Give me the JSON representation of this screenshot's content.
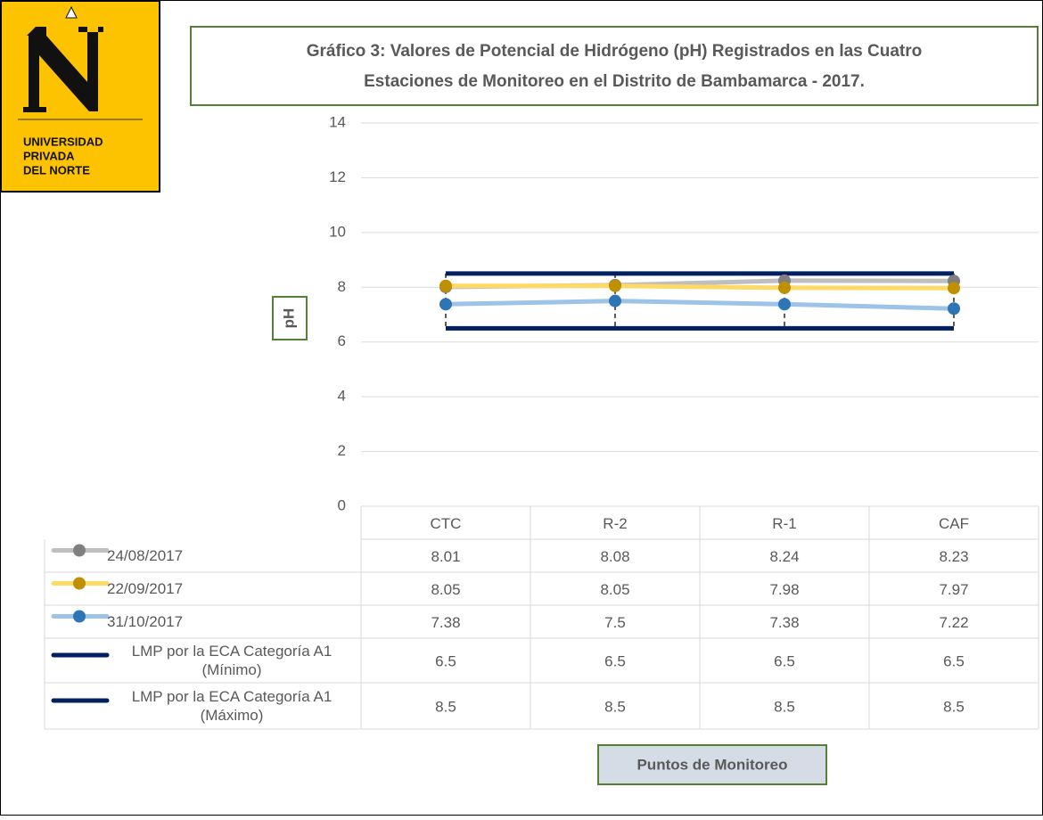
{
  "logo": {
    "lines": [
      "UNIVERSIDAD",
      "PRIVADA",
      "DEL NORTE"
    ]
  },
  "chart_data": {
    "type": "line",
    "title": [
      "Gráfico 3: Valores de Potencial de Hidrógeno (pH) Registrados en las Cuatro",
      "Estaciones de Monitoreo en el Distrito de Bambamarca - 2017."
    ],
    "x_label": "Puntos de Monitoreo",
    "y_label": "pH",
    "categories": [
      "CTC",
      "R-2",
      "R-1",
      "CAF"
    ],
    "series": [
      {
        "name": "24/08/2017",
        "color": "#bfbfbf",
        "marker_color": "#7f7f7f",
        "values": [
          8.01,
          8.08,
          8.24,
          8.23
        ]
      },
      {
        "name": "22/09/2017",
        "color": "#ffd966",
        "marker_color": "#bf9000",
        "values": [
          8.05,
          8.05,
          7.98,
          7.97
        ]
      },
      {
        "name": "31/10/2017",
        "color": "#9dc3e6",
        "marker_color": "#2e75b6",
        "values": [
          7.38,
          7.5,
          7.38,
          7.22
        ]
      },
      {
        "name": "LMP por la ECA Categoría A1 (Mínimo)",
        "color": "#002060",
        "values": [
          6.5,
          6.5,
          6.5,
          6.5
        ]
      },
      {
        "name": "LMP por la ECA Categoría A1 (Máximo)",
        "color": "#002060",
        "values": [
          8.5,
          8.5,
          8.5,
          8.5
        ]
      }
    ],
    "ylim": [
      0,
      14
    ],
    "yticks": [
      0,
      2,
      4,
      6,
      8,
      10,
      12,
      14
    ],
    "grid": true,
    "data_table": true
  }
}
